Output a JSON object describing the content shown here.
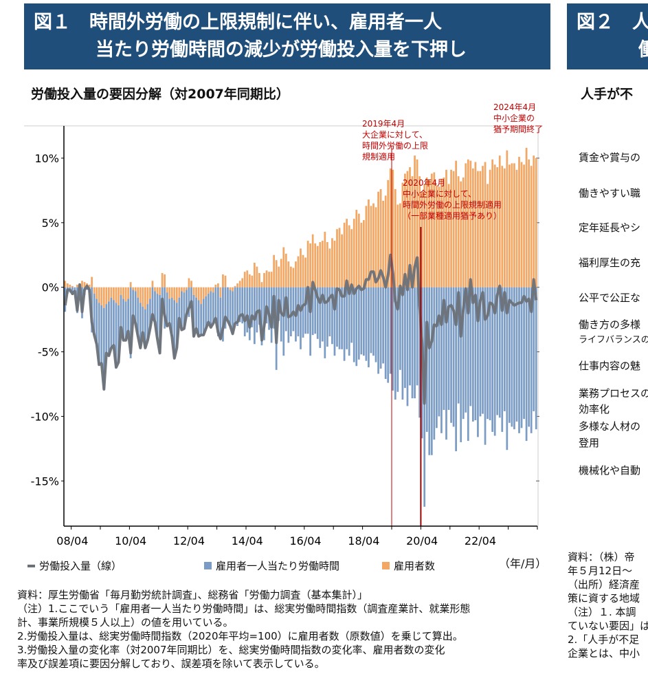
{
  "fig1": {
    "title_line1": "図１　時間外労働の上限規制に伴い、雇用者一人",
    "title_line2": "当たり労働時間の減少が労働投入量を下押し",
    "subtitle": "労働投入量の要因分解（対2007年同期比）",
    "annotations": {
      "a2019": "2019年4月\n大企業に対して、\n時間外労働の上限\n規制適用",
      "a2020": "2020年4月\n中小企業に対して、\n時間外労働の上限規制適用\n（一部業種適用猶予あり）",
      "a2024": "2024年4月\n中小企業の\n猶予期間終了"
    },
    "notes": [
      "資料：厚生労働省「毎月勤労統計調査」、総務省「労働力調査（基本集計）」",
      "（注）1.ここでいう「雇用者一人当たり労働時間」は、総実労働時間指数（調査産業計、就業形態",
      "計、事業所規模５人以上）の値を用いている。",
      "2.労働投入量は、総実労働時間指数（2020年平均=100）に雇用者数（原数値）を乗じて算出。",
      "3.労働投入量の変化率（対2007年同期比）を、総実労働時間指数の変化率、雇用者数の変化",
      "率及び誤差項に要因分解しており、誤差項を除いて表示している。"
    ]
  },
  "fig2": {
    "title_line1": "図２　人",
    "title_line2": "働",
    "subtitle": "人手が不",
    "items": [
      "賃金や賞与の",
      "働きやすい職",
      "定年延長やシ",
      "福利厚生の充",
      "公平で公正な",
      "働き方の多様",
      "ライフバランスの",
      "仕事内容の魅",
      "業務プロセスの",
      "効率化",
      "多様な人材の",
      "登用",
      "機械化や自動"
    ],
    "notes": [
      "資料：（株）帝",
      "年５月12日～",
      "（出所）経済産",
      "策に資する地域",
      "（注）１. 本調",
      "ていない要因」は",
      "2.「人手が不足",
      "企業とは、中小"
    ]
  },
  "chart_data": {
    "type": "bar+line",
    "stacked": true,
    "xlabel": "（年/月）",
    "ylabel": "",
    "start": "2008/01",
    "end": "2024/03",
    "frequency": "monthly",
    "ylim": [
      -18.5,
      12.5
    ],
    "yticks": [
      10,
      5,
      0,
      -5,
      -10,
      -15
    ],
    "ytick_labels": [
      "10%",
      "5%",
      "0%",
      "-5%",
      "-10%",
      "-15%"
    ],
    "xtick_labels": [
      "08/04",
      "10/04",
      "12/04",
      "14/04",
      "16/04",
      "18/04",
      "20/04",
      "22/04"
    ],
    "vlines": [
      {
        "date": "2019/04",
        "color": "#c00000"
      },
      {
        "date": "2020/04",
        "color": "#a00000"
      }
    ],
    "colors": {
      "line": "#6b7178",
      "hours": "#7b9cc4",
      "employees": "#f2a765",
      "annot": "#c00000",
      "header": "#1f4e7a"
    },
    "series": [
      {
        "name": "雇用者数",
        "type": "bar",
        "values": [
          0.5,
          0.3,
          0.2,
          0.1,
          0.0,
          0.2,
          0.3,
          0.5,
          0.4,
          0.3,
          0.2,
          0.8,
          -0.5,
          -0.9,
          -1.2,
          -1.4,
          -1.6,
          -1.3,
          -1.1,
          -0.8,
          -1.0,
          -1.2,
          -1.4,
          -0.6,
          -0.9,
          -1.1,
          -0.9,
          0.4,
          -0.2,
          -0.3,
          -0.8,
          -1.2,
          -1.5,
          -1.7,
          -1.3,
          -0.9,
          0.5,
          -0.3,
          -0.5,
          -0.6,
          1.1,
          1.0,
          -0.4,
          -0.9,
          -0.8,
          -1.0,
          -1.2,
          -0.8,
          -0.3,
          -0.4,
          -0.2,
          0.7,
          0.5,
          -0.6,
          -0.8,
          -1.0,
          -1.3,
          -0.9,
          -0.7,
          -0.5,
          -0.3,
          -0.4,
          0.2,
          0.3,
          -0.8,
          1.0,
          0.9,
          0.0,
          -0.2,
          -0.3,
          0.1,
          0.3,
          0.5,
          0.7,
          1.2,
          1.3,
          1.0,
          0.9,
          1.9,
          1.6,
          1.1,
          0.4,
          1.1,
          1.3,
          1.2,
          1.2,
          2.5,
          2.1,
          1.6,
          2.2,
          3.1,
          2.6,
          2.0,
          1.6,
          1.5,
          2.0,
          2.4,
          3.0,
          2.5,
          2.3,
          3.6,
          3.4,
          4.1,
          3.4,
          3.2,
          3.5,
          3.6,
          4.3,
          3.5,
          3.0,
          3.8,
          3.6,
          4.5,
          4.6,
          4.1,
          5.0,
          5.3,
          4.8,
          4.5,
          5.3,
          6.0,
          5.7,
          5.0,
          5.2,
          6.3,
          6.8,
          6.3,
          6.5,
          6.2,
          7.4,
          7.6,
          6.7,
          7.1,
          8.3,
          9.2,
          9.1,
          7.6,
          6.4,
          6.5,
          8.1,
          8.8,
          9.0,
          9.3,
          8.6,
          10.2,
          9.9,
          8.6,
          7.4,
          8.0,
          8.5,
          8.3,
          8.8,
          8.9,
          7.9,
          7.8,
          8.4,
          8.5,
          9.1,
          8.0,
          9.1,
          9.0,
          9.8,
          8.6,
          8.2,
          8.5,
          9.6,
          9.9,
          9.8,
          9.2,
          9.7,
          9.0,
          9.0,
          9.4,
          9.7,
          8.0,
          9.1,
          9.9,
          9.5,
          9.3,
          10.2,
          9.4,
          9.2,
          10.6,
          9.5,
          9.6,
          9.6,
          9.1,
          10.1,
          9.7,
          9.5,
          10.8,
          9.9,
          9.4,
          10.2,
          10.0
        ]
      },
      {
        "name": "雇用者一人当たり労働時間",
        "type": "bar",
        "values": [
          -1.9,
          -0.5,
          -0.4,
          -0.6,
          -0.3,
          -2.0,
          -0.1,
          -2.4,
          -0.6,
          -0.2,
          -0.4,
          -3.5,
          -3.2,
          -3.5,
          -4.8,
          -4.5,
          -6.3,
          -3.8,
          -4.2,
          -3.9,
          -3.5,
          -5.0,
          -4.4,
          -2.5,
          -3.2,
          -3.0,
          -2.5,
          -5.5,
          -2.0,
          -2.5,
          -3.0,
          -3.5,
          -2.0,
          -3.0,
          -2.8,
          -2.3,
          -2.6,
          -2.4,
          -3.5,
          -4.5,
          -2.0,
          -3.2,
          -2.6,
          -1.9,
          -3.0,
          -4.5,
          -3.5,
          -1.6,
          -3.0,
          -2.8,
          -1.9,
          -2.3,
          -1.6,
          -3.2,
          -2.4,
          -2.8,
          -2.4,
          -2.8,
          -2.5,
          -2.2,
          -2.8,
          -2.4,
          -2.6,
          -3.8,
          -3.2,
          -4.2,
          -3.2,
          -2.6,
          -2.8,
          -3.3,
          -2.9,
          -3.0,
          -2.7,
          -2.8,
          -3.8,
          -3.5,
          -4.1,
          -3.1,
          -4.4,
          -3.5,
          -2.9,
          -4.5,
          -4.1,
          -2.8,
          -3.3,
          -4.3,
          -3.2,
          -6.4,
          -2.6,
          -4.2,
          -5.3,
          -3.4,
          -4.3,
          -3.8,
          -3.4,
          -4.2,
          -3.8,
          -4.8,
          -3.9,
          -3.6,
          -3.6,
          -5.3,
          -3.7,
          -3.6,
          -4.0,
          -4.7,
          -4.2,
          -5.5,
          -4.6,
          -3.8,
          -4.4,
          -5.3,
          -4.6,
          -4.8,
          -4.8,
          -5.7,
          -4.8,
          -5.3,
          -4.3,
          -5.8,
          -6.1,
          -5.6,
          -5.2,
          -5.3,
          -5.7,
          -6.2,
          -5.1,
          -5.3,
          -5.8,
          -6.7,
          -6.3,
          -5.9,
          -7.1,
          -7.4,
          -6.7,
          -8.0,
          -8.7,
          -8.1,
          -6.4,
          -8.7,
          -7.8,
          -9.2,
          -7.6,
          -8.6,
          -8.6,
          -7.6,
          -10.1,
          -11.7,
          -17.0,
          -11.2,
          -13.0,
          -13.0,
          -11.8,
          -10.9,
          -10.0,
          -11.3,
          -9.5,
          -11.8,
          -9.5,
          -10.5,
          -10.8,
          -12.7,
          -9.0,
          -12.0,
          -10.2,
          -9.7,
          -11.9,
          -9.2,
          -10.4,
          -10.3,
          -11.6,
          -10.0,
          -9.8,
          -12.2,
          -10.2,
          -10.3,
          -11.2,
          -11.5,
          -9.9,
          -10.1,
          -11.2,
          -9.6,
          -12.6,
          -10.5,
          -10.8,
          -11.0,
          -10.4,
          -11.3,
          -10.9,
          -10.2,
          -11.9,
          -10.8,
          -11.3,
          -9.6,
          -11.0
        ]
      },
      {
        "name": "労働投入量（線）",
        "type": "line",
        "computed_as": "sum of components"
      }
    ],
    "legend": [
      {
        "label": "労働投入量（線）",
        "key": "line"
      },
      {
        "label": "雇用者一人当たり労働時間",
        "key": "hours"
      },
      {
        "label": "雇用者数",
        "key": "employees"
      }
    ],
    "legend_position": "bottom"
  }
}
